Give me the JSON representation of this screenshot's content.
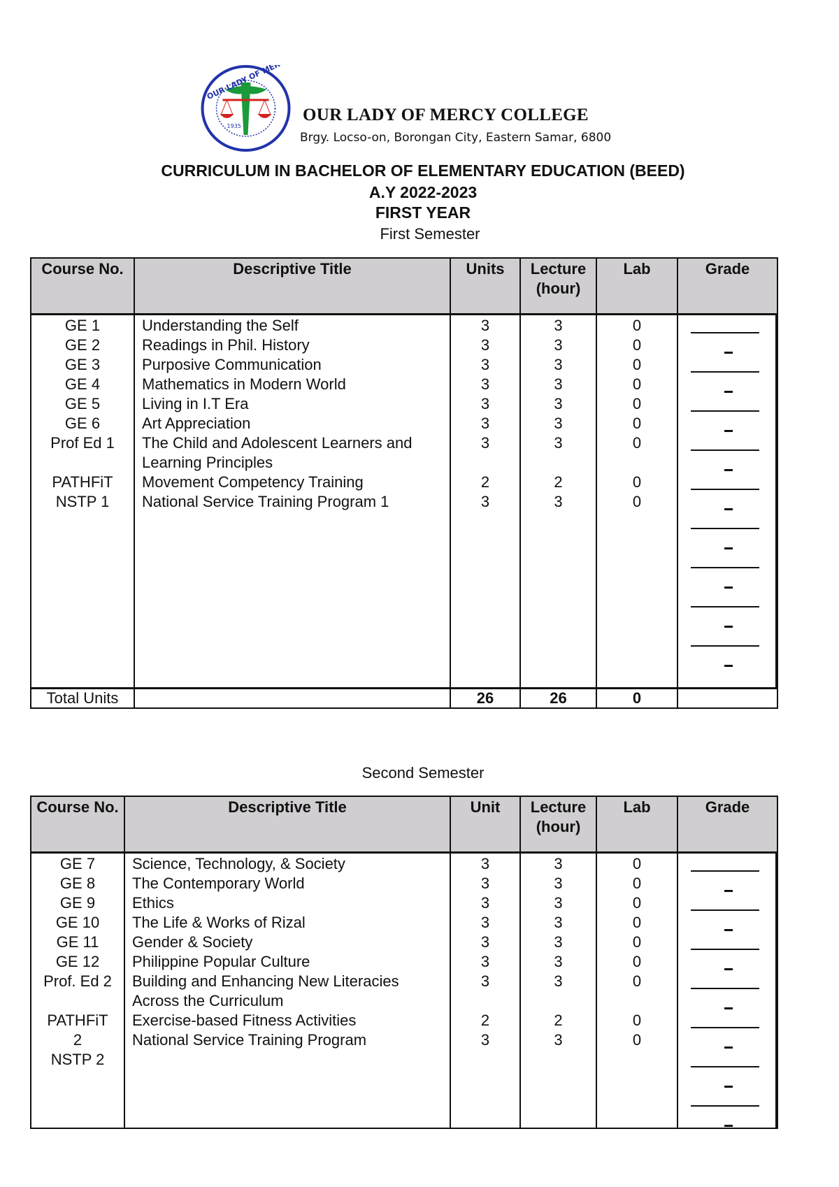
{
  "header": {
    "logo_text": "OUR LADY OF MERCY COLLEGE 1935",
    "college_name": "OUR LADY OF MERCY COLLEGE",
    "address": "Brgy. Locso-on, Borongan City, Eastern Samar, 6800",
    "curriculum_title": "CURRICULUM IN BACHELOR OF ELEMENTARY EDUCATION (BEED)",
    "academic_year": "A.Y  2022-2023",
    "year_level": "FIRST YEAR"
  },
  "colors": {
    "header_bg": "#d0ced0",
    "logo_blue": "#2233aa",
    "logo_green": "#1a9a3a",
    "logo_red": "#d42020"
  },
  "first_semester": {
    "label": "First Semester",
    "columns": {
      "course": "Course No.",
      "title": "Descriptive Title",
      "units": "Units",
      "lecture": "Lecture (hour)",
      "lab": "Lab",
      "grade": "Grade"
    },
    "rows": [
      {
        "course": "GE 1",
        "title": "Understanding the Self",
        "units": "3",
        "lecture": "3",
        "lab": "0"
      },
      {
        "course": "GE 2",
        "title": "Readings in Phil. History",
        "units": "3",
        "lecture": "3",
        "lab": "0"
      },
      {
        "course": "GE 3",
        "title": "Purposive Communication",
        "units": "3",
        "lecture": "3",
        "lab": "0"
      },
      {
        "course": "GE 4",
        "title": "Mathematics in Modern World",
        "units": "3",
        "lecture": "3",
        "lab": "0"
      },
      {
        "course": "GE 5",
        "title": "Living in I.T Era",
        "units": "3",
        "lecture": "3",
        "lab": "0"
      },
      {
        "course": "GE 6",
        "title": "Art Appreciation",
        "units": "3",
        "lecture": "3",
        "lab": "0"
      },
      {
        "course": "Prof Ed 1",
        "title": "The Child and Adolescent Learners and Learning Principles",
        "units": "3",
        "lecture": "3",
        "lab": "0"
      },
      {
        "course": "PATHFiT",
        "title": "Movement Competency Training",
        "units": "2",
        "lecture": "2",
        "lab": "0"
      },
      {
        "course": "NSTP 1",
        "title": "National Service Training Program 1",
        "units": "3",
        "lecture": "3",
        "lab": "0"
      }
    ],
    "total": {
      "label": "Total Units",
      "units": "26",
      "lecture": "26",
      "lab": "0"
    }
  },
  "second_semester": {
    "label": "Second Semester",
    "columns": {
      "course": "Course No.",
      "title": "Descriptive Title",
      "units": "Unit",
      "lecture": "Lecture (hour)",
      "lab": "Lab",
      "grade": "Grade"
    },
    "rows": [
      {
        "course": "GE 7",
        "title": "Science, Technology, & Society",
        "units": "3",
        "lecture": "3",
        "lab": "0"
      },
      {
        "course": "GE 8",
        "title": "The Contemporary World",
        "units": "3",
        "lecture": "3",
        "lab": "0"
      },
      {
        "course": "GE 9",
        "title": "Ethics",
        "units": "3",
        "lecture": "3",
        "lab": "0"
      },
      {
        "course": "GE 10",
        "title": "The Life & Works of Rizal",
        "units": "3",
        "lecture": "3",
        "lab": "0"
      },
      {
        "course": "GE 11",
        "title": "Gender & Society",
        "units": "3",
        "lecture": "3",
        "lab": "0"
      },
      {
        "course": "GE 12",
        "title": "Philippine Popular Culture",
        "units": "3",
        "lecture": "3",
        "lab": "0"
      },
      {
        "course": "Prof. Ed 2",
        "title": "Building and Enhancing New Literacies Across the Curriculum",
        "units": "3",
        "lecture": "3",
        "lab": "0"
      },
      {
        "course": "PATHFiT 2",
        "title": "Exercise-based Fitness Activities",
        "units": "2",
        "lecture": "2",
        "lab": "0"
      },
      {
        "course": "NSTP 2",
        "title": "National Service Training Program",
        "units": "3",
        "lecture": "3",
        "lab": "0"
      }
    ]
  }
}
